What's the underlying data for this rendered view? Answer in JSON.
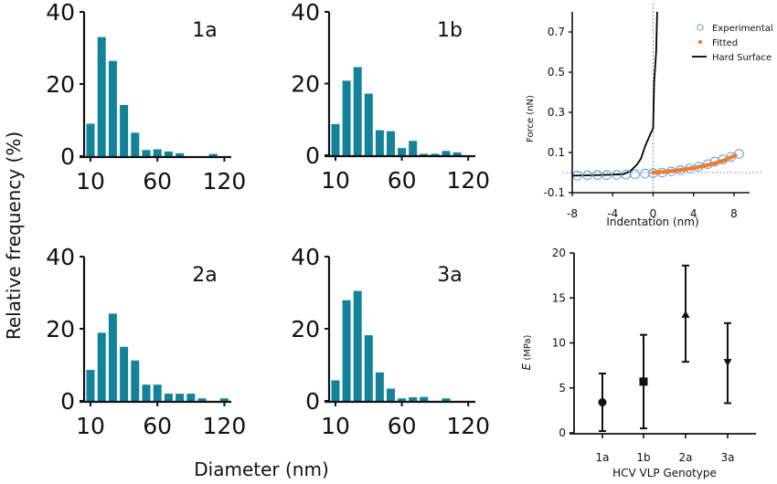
{
  "figure": {
    "shared_ylabel": "Relative frequency (%)",
    "shared_xlabel": "Diameter (nm)"
  },
  "chart_data": [
    {
      "id": "hist-1a",
      "type": "bar",
      "panel_label": "1a",
      "xlabel": "Diameter (nm)",
      "ylabel": "Relative frequency (%)",
      "ylim": [
        0,
        40
      ],
      "yticks": [
        0,
        20,
        40
      ],
      "xticks": [
        {
          "label": "10",
          "bin": 0
        },
        {
          "label": "60",
          "bin": 6
        },
        {
          "label": "120",
          "bin": 12
        }
      ],
      "bin_count": 13,
      "values": [
        9,
        33,
        26.4,
        14.2,
        6.5,
        1.7,
        1.9,
        1.3,
        0.8,
        0,
        0,
        0.6,
        0
      ],
      "color": "#13829a"
    },
    {
      "id": "hist-1b",
      "type": "bar",
      "panel_label": "1b",
      "xlabel": "Diameter (nm)",
      "ylabel": "Relative frequency (%)",
      "ylim": [
        0,
        40
      ],
      "yticks": [
        0,
        20,
        40
      ],
      "xticks": [
        {
          "label": "10",
          "bin": 0
        },
        {
          "label": "60",
          "bin": 6
        },
        {
          "label": "120",
          "bin": 12
        }
      ],
      "bin_count": 13,
      "values": [
        8.7,
        20.8,
        24.6,
        17.2,
        7.0,
        6.7,
        2.0,
        4.0,
        0.4,
        0.4,
        1.2,
        0.8,
        0
      ],
      "color": "#13829a"
    },
    {
      "id": "hist-2a",
      "type": "bar",
      "panel_label": "2a",
      "xlabel": "Diameter (nm)",
      "ylabel": "Relative frequency (%)",
      "ylim": [
        0,
        40
      ],
      "yticks": [
        0,
        20,
        40
      ],
      "xticks": [
        {
          "label": "10",
          "bin": 0
        },
        {
          "label": "60",
          "bin": 6
        },
        {
          "label": "120",
          "bin": 12
        }
      ],
      "bin_count": 13,
      "values": [
        8.6,
        18.9,
        24.2,
        15.0,
        11.2,
        4.5,
        4.5,
        2.0,
        2.0,
        2.0,
        0.7,
        0,
        0.7
      ],
      "color": "#13829a"
    },
    {
      "id": "hist-3a",
      "type": "bar",
      "panel_label": "3a",
      "xlabel": "Diameter (nm)",
      "ylabel": "Relative frequency (%)",
      "ylim": [
        0,
        40
      ],
      "yticks": [
        0,
        20,
        40
      ],
      "xticks": [
        {
          "label": "10",
          "bin": 0
        },
        {
          "label": "60",
          "bin": 6
        },
        {
          "label": "120",
          "bin": 12
        }
      ],
      "bin_count": 13,
      "values": [
        5.7,
        27.9,
        30.5,
        18.2,
        7.9,
        3.4,
        0.7,
        1.0,
        1.1,
        0,
        0.7,
        0,
        0
      ],
      "color": "#13829a"
    },
    {
      "id": "force-curve",
      "type": "line",
      "xlabel": "Indentation (nm)",
      "ylabel": "Force (nN)",
      "xlim": [
        -8,
        9.5
      ],
      "ylim": [
        -0.1,
        0.8
      ],
      "xticks": [
        -8,
        -4,
        0,
        4,
        8
      ],
      "yticks": [
        -0.1,
        0.1,
        0.3,
        0.5,
        0.7
      ],
      "reference_lines": {
        "x": 0,
        "y": 0
      },
      "legend": {
        "position": "top-right",
        "entries": [
          "Experimental",
          "Fitted",
          "Hard Surface"
        ]
      },
      "series": [
        {
          "name": "Experimental",
          "style": "open-circle",
          "color": "#5b9bd5",
          "x": [
            -7.5,
            -6.5,
            -5.5,
            -4.6,
            -3.6,
            -2.7,
            -1.8,
            -0.8,
            0,
            0.9,
            1.8,
            2.7,
            3.6,
            4.5,
            5.4,
            6.1,
            6.9,
            7.7,
            8.5
          ],
          "y": [
            -0.015,
            -0.013,
            -0.012,
            -0.012,
            -0.011,
            -0.01,
            -0.008,
            -0.005,
            -0.003,
            0.0,
            0.006,
            0.012,
            0.02,
            0.03,
            0.042,
            0.055,
            0.065,
            0.078,
            0.093
          ]
        },
        {
          "name": "Fitted",
          "style": "filled-dots",
          "color": "#ed7d31",
          "x": [
            0,
            1,
            2,
            3,
            4,
            5,
            6,
            7,
            8.1
          ],
          "y": [
            0.0,
            0.003,
            0.008,
            0.015,
            0.023,
            0.033,
            0.045,
            0.06,
            0.085
          ]
        },
        {
          "name": "Hard Surface",
          "style": "solid-line",
          "color": "#000000",
          "x": [
            -8,
            -5,
            -3,
            -2.3,
            -1.6,
            -1.2,
            -0.8,
            -0.2,
            0,
            0.1,
            0.3,
            0.4
          ],
          "y": [
            -0.015,
            -0.012,
            -0.008,
            0.005,
            0.04,
            0.07,
            0.13,
            0.2,
            0.22,
            0.45,
            0.6,
            0.8
          ]
        }
      ]
    },
    {
      "id": "modulus",
      "type": "scatter",
      "xlabel": "HCV VLP Genotype",
      "ylabel_italic": "E",
      "ylabel_unit": " (MPa)",
      "ylim": [
        0,
        20
      ],
      "yticks": [
        0,
        5,
        10,
        15,
        20
      ],
      "categories": [
        "1a",
        "1b",
        "2a",
        "3a"
      ],
      "points": [
        {
          "category": "1a",
          "mean": 3.4,
          "lower": 0.2,
          "upper": 6.6,
          "marker": "circle"
        },
        {
          "category": "1b",
          "mean": 5.7,
          "lower": 0.5,
          "upper": 10.9,
          "marker": "square"
        },
        {
          "category": "2a",
          "mean": 13.1,
          "lower": 7.9,
          "upper": 18.6,
          "marker": "triangle-up"
        },
        {
          "category": "3a",
          "mean": 7.9,
          "lower": 3.3,
          "upper": 12.2,
          "marker": "triangle-down"
        }
      ]
    }
  ]
}
